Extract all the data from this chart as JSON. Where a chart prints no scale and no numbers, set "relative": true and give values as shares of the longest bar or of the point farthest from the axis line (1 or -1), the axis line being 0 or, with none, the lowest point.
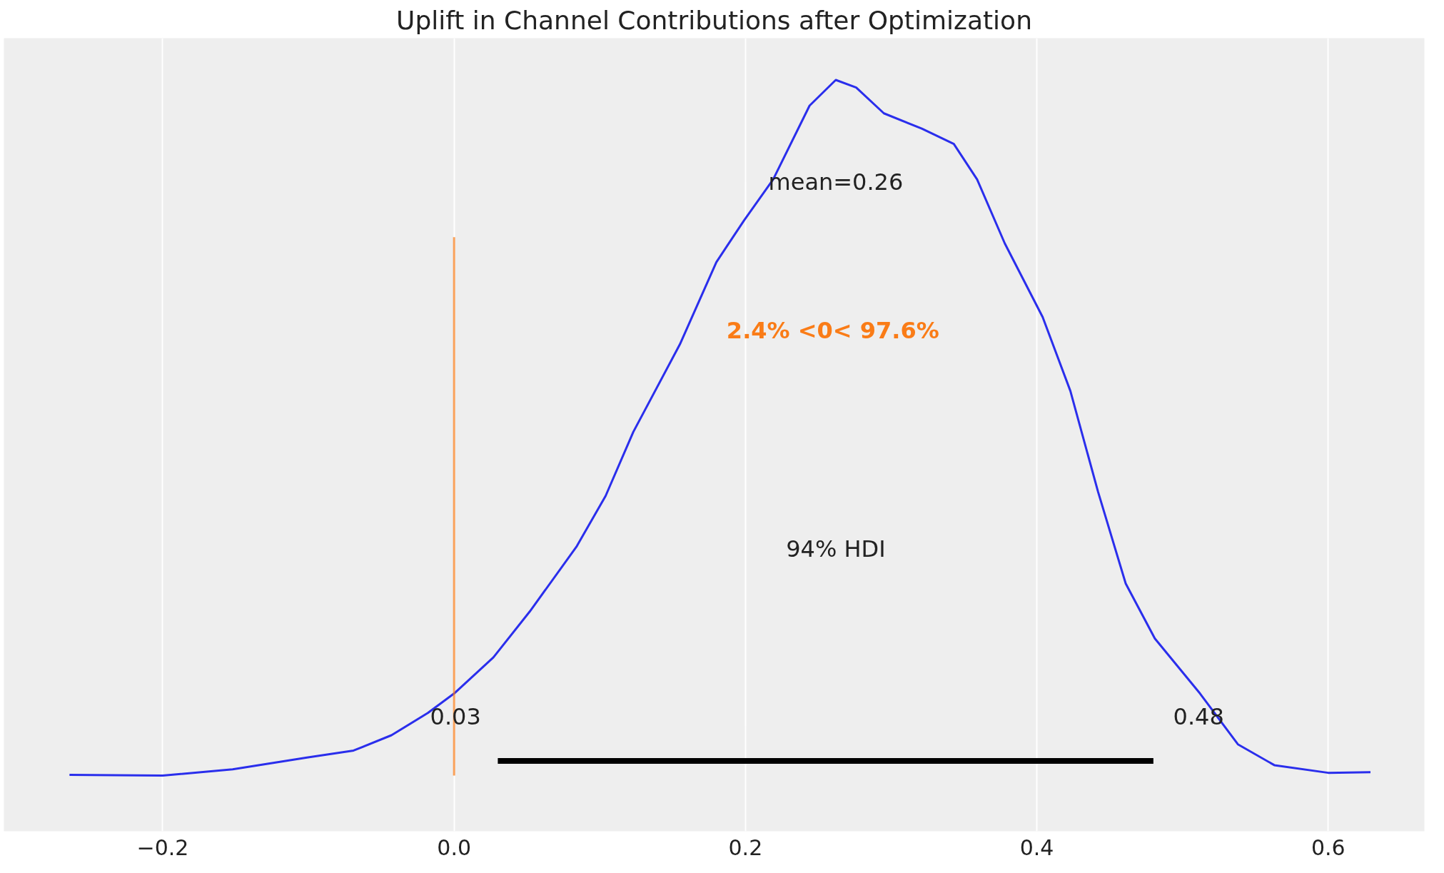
{
  "chart_data": {
    "type": "line",
    "title": "Uplift in Channel Contributions after Optimization",
    "relative": true,
    "xlim": [
      -0.309,
      0.666
    ],
    "xticks": [
      {
        "value": -0.2,
        "label": "−0.2"
      },
      {
        "value": 0,
        "label": "0.0"
      },
      0.2,
      0.4,
      0.6
    ],
    "tick_labels": "x",
    "grid": "x",
    "marker": "none",
    "line_style": "solid",
    "series": [
      {
        "color": "#2a2eec",
        "x": [
          -0.264,
          -0.2,
          -0.152,
          -0.101,
          -0.069,
          -0.043,
          -0.018,
          0.0,
          0.027,
          0.052,
          0.084,
          0.104,
          0.123,
          0.155,
          0.18,
          0.199,
          0.219,
          0.244,
          0.262,
          0.276,
          0.295,
          0.321,
          0.343,
          0.359,
          0.378,
          0.404,
          0.423,
          0.442,
          0.461,
          0.481,
          0.512,
          0.538,
          0.563,
          0.6,
          0.629
        ],
        "values": [
          0.001,
          0,
          0.009,
          0.026,
          0.036,
          0.058,
          0.09,
          0.118,
          0.17,
          0.236,
          0.329,
          0.402,
          0.494,
          0.62,
          0.738,
          0.798,
          0.857,
          0.963,
          1.0,
          0.989,
          0.952,
          0.93,
          0.908,
          0.857,
          0.765,
          0.659,
          0.553,
          0.408,
          0.276,
          0.197,
          0.118,
          0.045,
          0.015,
          0.004,
          0.005
        ]
      },
      {
        "color": "#000000",
        "x": [
          0.03,
          0.48
        ],
        "values": [
          0.021,
          0.021
        ]
      }
    ],
    "ref_lines": [
      {
        "axis": "x",
        "value": 0,
        "label": "2.4% <0< 97.6%",
        "color": "#fa7c17"
      }
    ],
    "annotations": [
      "mean=0.26",
      "94% HDI",
      "0.03",
      "0.48"
    ]
  }
}
